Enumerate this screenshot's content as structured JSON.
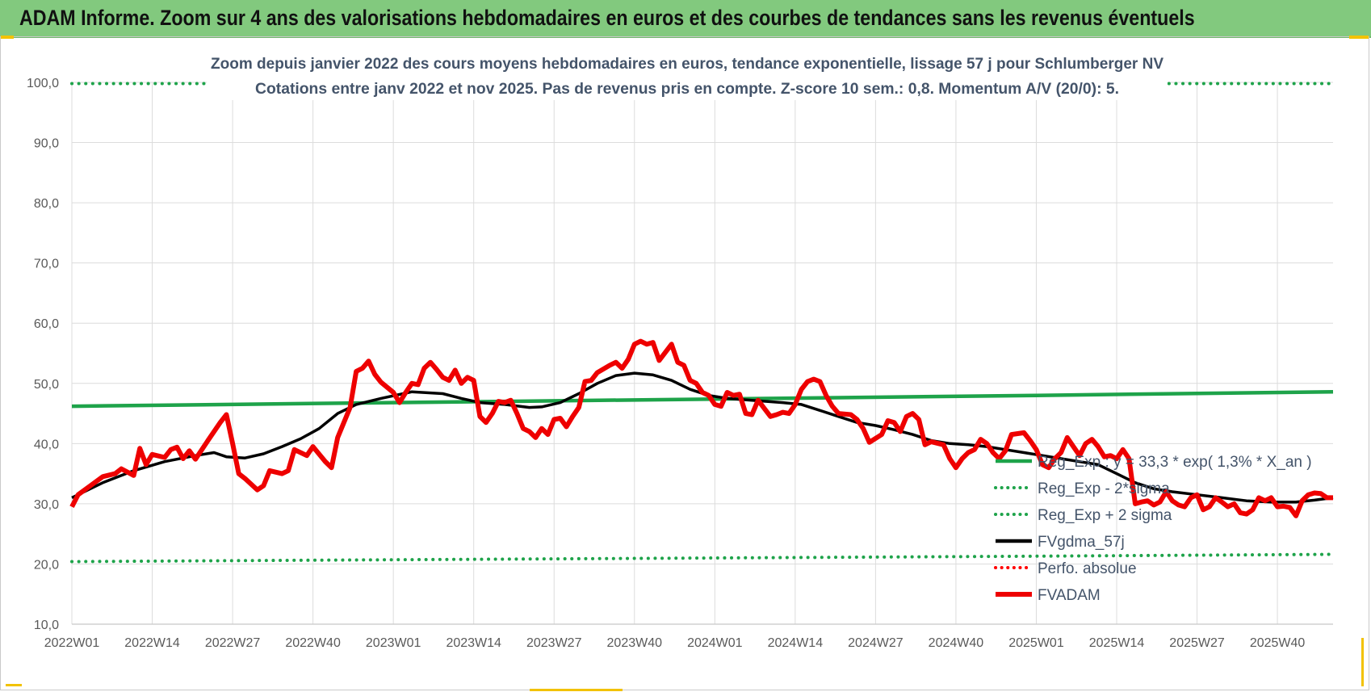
{
  "banner": {
    "title": "ADAM Informe. Zoom sur 4 ans des valorisations hebdomadaires en euros et des courbes de tendances sans les revenus éventuels"
  },
  "chart_data": {
    "type": "line",
    "title": "Zoom depuis janvier 2022 des cours moyens hebdomadaires en euros, tendance exponentielle, lissage 57 j pour Schlumberger NV",
    "subtitle": "Cotations entre janv 2022 et nov 2025. Pas de revenus pris en compte. Z-score 10 sem.: 0,8. Momentum A/V (20/0): 5.",
    "xlabel": "",
    "ylabel": "",
    "ylim": [
      10,
      100
    ],
    "yticks": [
      "10,0",
      "20,0",
      "30,0",
      "40,0",
      "50,0",
      "60,0",
      "70,0",
      "80,0",
      "90,0",
      "100,0"
    ],
    "xticks": [
      {
        "index": 0,
        "label": "2022W01"
      },
      {
        "index": 13,
        "label": "2022W14"
      },
      {
        "index": 26,
        "label": "2022W27"
      },
      {
        "index": 39,
        "label": "2022W40"
      },
      {
        "index": 52,
        "label": "2023W01"
      },
      {
        "index": 65,
        "label": "2023W14"
      },
      {
        "index": 78,
        "label": "2023W27"
      },
      {
        "index": 91,
        "label": "2023W40"
      },
      {
        "index": 104,
        "label": "2024W01"
      },
      {
        "index": 117,
        "label": "2024W14"
      },
      {
        "index": 130,
        "label": "2024W27"
      },
      {
        "index": 143,
        "label": "2024W40"
      },
      {
        "index": 156,
        "label": "2025W01"
      },
      {
        "index": 169,
        "label": "2025W14"
      },
      {
        "index": 182,
        "label": "2025W27"
      },
      {
        "index": 195,
        "label": "2025W40"
      }
    ],
    "x_count": 205,
    "series": [
      {
        "name": "Reg_Exp : y = 33,3 * exp( 1,3% * X_an )",
        "style": "solid",
        "color": "#1ea34a",
        "points": [
          [
            0,
            46.2
          ],
          [
            52,
            46.8
          ],
          [
            104,
            47.4
          ],
          [
            156,
            48.0
          ],
          [
            204,
            48.6
          ]
        ]
      },
      {
        "name": "Reg_Exp - 2*sigma",
        "style": "dotted",
        "color": "#1ea34a",
        "points": [
          [
            0,
            20.4
          ],
          [
            52,
            20.7
          ],
          [
            104,
            21.0
          ],
          [
            156,
            21.3
          ],
          [
            204,
            21.6
          ]
        ]
      },
      {
        "name": "Reg_Exp + 2 sigma",
        "style": "dotted",
        "color": "#1ea34a",
        "points": [
          [
            0,
            99.8
          ],
          [
            204,
            99.8
          ]
        ]
      },
      {
        "name": "FVgdma_57j",
        "style": "solid",
        "color": "#000000",
        "points": [
          [
            0,
            31
          ],
          [
            5,
            33.5
          ],
          [
            10,
            35.5
          ],
          [
            15,
            37
          ],
          [
            20,
            38
          ],
          [
            23,
            38.5
          ],
          [
            25,
            37.8
          ],
          [
            28,
            37.6
          ],
          [
            31,
            38.3
          ],
          [
            34,
            39.5
          ],
          [
            37,
            40.8
          ],
          [
            40,
            42.5
          ],
          [
            43,
            45
          ],
          [
            46,
            46.5
          ],
          [
            50,
            47.5
          ],
          [
            55,
            48.6
          ],
          [
            60,
            48.3
          ],
          [
            63,
            47.5
          ],
          [
            66,
            46.8
          ],
          [
            70,
            46.5
          ],
          [
            74,
            46
          ],
          [
            76,
            46.1
          ],
          [
            79,
            46.8
          ],
          [
            82,
            48.3
          ],
          [
            85,
            50
          ],
          [
            88,
            51.3
          ],
          [
            91,
            51.7
          ],
          [
            94,
            51.4
          ],
          [
            97,
            50.5
          ],
          [
            100,
            49
          ],
          [
            103,
            48
          ],
          [
            106,
            47.5
          ],
          [
            110,
            47.2
          ],
          [
            115,
            46.8
          ],
          [
            118,
            46.5
          ],
          [
            121,
            45.5
          ],
          [
            124,
            44.5
          ],
          [
            127,
            43.5
          ],
          [
            130,
            43
          ],
          [
            133,
            42.3
          ],
          [
            136,
            41.5
          ],
          [
            139,
            40.5
          ],
          [
            142,
            40
          ],
          [
            145,
            39.8
          ],
          [
            148,
            39.5
          ],
          [
            151,
            39
          ],
          [
            154,
            38.5
          ],
          [
            157,
            38
          ],
          [
            160,
            37.5
          ],
          [
            163,
            37
          ],
          [
            166,
            36.5
          ],
          [
            169,
            35
          ],
          [
            172,
            33.5
          ],
          [
            175,
            32.5
          ],
          [
            178,
            32
          ],
          [
            182,
            31.5
          ],
          [
            186,
            31
          ],
          [
            190,
            30.5
          ],
          [
            194,
            30.3
          ],
          [
            198,
            30.3
          ],
          [
            201,
            30.6
          ],
          [
            204,
            31
          ]
        ]
      },
      {
        "name": "Perfo. absolue",
        "style": "dotted",
        "color": "#ff0000",
        "points": []
      },
      {
        "name": "FVADAM",
        "style": "solid",
        "color": "#ee0000",
        "points": [
          [
            0,
            29.5
          ],
          [
            1,
            31.5
          ],
          [
            3,
            33
          ],
          [
            5,
            34.5
          ],
          [
            7,
            35
          ],
          [
            8,
            35.8
          ],
          [
            10,
            34.7
          ],
          [
            11,
            39.2
          ],
          [
            12,
            36.5
          ],
          [
            13,
            38.2
          ],
          [
            15,
            37.7
          ],
          [
            16,
            39
          ],
          [
            17,
            39.4
          ],
          [
            18,
            37.5
          ],
          [
            19,
            38.8
          ],
          [
            20,
            37.4
          ],
          [
            22,
            40.5
          ],
          [
            24,
            43.5
          ],
          [
            25,
            44.8
          ],
          [
            26,
            40
          ],
          [
            27,
            35
          ],
          [
            28,
            34.2
          ],
          [
            30,
            32.3
          ],
          [
            31,
            33
          ],
          [
            32,
            35.5
          ],
          [
            34,
            35
          ],
          [
            35,
            35.5
          ],
          [
            36,
            39
          ],
          [
            38,
            38
          ],
          [
            39,
            39.5
          ],
          [
            41,
            37
          ],
          [
            42,
            36
          ],
          [
            43,
            41
          ],
          [
            45,
            46
          ],
          [
            46,
            52
          ],
          [
            47,
            52.5
          ],
          [
            48,
            53.7
          ],
          [
            49,
            51.5
          ],
          [
            50,
            50.2
          ],
          [
            52,
            48.5
          ],
          [
            53,
            46.8
          ],
          [
            54,
            48.5
          ],
          [
            55,
            50
          ],
          [
            56,
            49.8
          ],
          [
            57,
            52.5
          ],
          [
            58,
            53.5
          ],
          [
            59,
            52.3
          ],
          [
            60,
            51
          ],
          [
            61,
            50.5
          ],
          [
            62,
            52.2
          ],
          [
            63,
            50
          ],
          [
            64,
            51
          ],
          [
            65,
            50.5
          ],
          [
            66,
            44.5
          ],
          [
            67,
            43.5
          ],
          [
            68,
            45
          ],
          [
            69,
            47
          ],
          [
            70,
            46.8
          ],
          [
            71,
            47.2
          ],
          [
            72,
            45
          ],
          [
            73,
            42.5
          ],
          [
            74,
            42
          ],
          [
            75,
            41
          ],
          [
            76,
            42.5
          ],
          [
            77,
            41.5
          ],
          [
            78,
            44
          ],
          [
            79,
            44.2
          ],
          [
            80,
            42.8
          ],
          [
            81,
            44.5
          ],
          [
            82,
            46
          ],
          [
            83,
            50.3
          ],
          [
            84,
            50.5
          ],
          [
            85,
            51.8
          ],
          [
            87,
            53
          ],
          [
            88,
            53.5
          ],
          [
            89,
            52.5
          ],
          [
            90,
            54
          ],
          [
            91,
            56.5
          ],
          [
            92,
            57
          ],
          [
            93,
            56.5
          ],
          [
            94,
            56.8
          ],
          [
            95,
            53.8
          ],
          [
            97,
            56.5
          ],
          [
            98,
            53.5
          ],
          [
            99,
            53
          ],
          [
            100,
            50.5
          ],
          [
            101,
            50
          ],
          [
            102,
            48.5
          ],
          [
            103,
            48
          ],
          [
            104,
            46.5
          ],
          [
            105,
            46.2
          ],
          [
            106,
            48.5
          ],
          [
            107,
            48
          ],
          [
            108,
            48.2
          ],
          [
            109,
            45
          ],
          [
            110,
            44.8
          ],
          [
            111,
            47.2
          ],
          [
            113,
            44.5
          ],
          [
            114,
            44.8
          ],
          [
            115,
            45.2
          ],
          [
            116,
            45
          ],
          [
            117,
            46.5
          ],
          [
            118,
            49
          ],
          [
            119,
            50.3
          ],
          [
            120,
            50.7
          ],
          [
            121,
            50.3
          ],
          [
            122,
            48
          ],
          [
            123,
            46.2
          ],
          [
            124,
            45
          ],
          [
            126,
            44.8
          ],
          [
            127,
            44
          ],
          [
            128,
            42.5
          ],
          [
            129,
            40.2
          ],
          [
            131,
            41.5
          ],
          [
            132,
            43.8
          ],
          [
            133,
            43.5
          ],
          [
            134,
            42
          ],
          [
            135,
            44.5
          ],
          [
            136,
            45
          ],
          [
            137,
            44
          ],
          [
            138,
            39.8
          ],
          [
            139,
            40.3
          ],
          [
            141,
            39.8
          ],
          [
            142,
            37.5
          ],
          [
            143,
            36
          ],
          [
            144,
            37.5
          ],
          [
            145,
            38.5
          ],
          [
            146,
            39
          ],
          [
            147,
            40.7
          ],
          [
            148,
            40
          ],
          [
            149,
            38.5
          ],
          [
            150,
            37.5
          ],
          [
            151,
            38.8
          ],
          [
            152,
            41.5
          ],
          [
            154,
            41.8
          ],
          [
            155,
            40.5
          ],
          [
            156,
            39
          ],
          [
            157,
            36.5
          ],
          [
            158,
            36
          ],
          [
            159,
            37.5
          ],
          [
            160,
            38.5
          ],
          [
            161,
            41
          ],
          [
            162,
            39.5
          ],
          [
            163,
            38
          ],
          [
            164,
            40
          ],
          [
            165,
            40.7
          ],
          [
            166,
            39.5
          ],
          [
            167,
            37.8
          ],
          [
            168,
            38
          ],
          [
            169,
            37.5
          ],
          [
            170,
            39
          ],
          [
            171,
            37.5
          ],
          [
            172,
            30
          ],
          [
            173,
            30.3
          ],
          [
            174,
            30.5
          ],
          [
            175,
            29.8
          ],
          [
            176,
            30.3
          ],
          [
            177,
            32
          ],
          [
            178,
            30.5
          ],
          [
            179,
            29.8
          ],
          [
            180,
            29.5
          ],
          [
            181,
            31
          ],
          [
            182,
            31.5
          ],
          [
            183,
            29
          ],
          [
            184,
            29.5
          ],
          [
            185,
            31
          ],
          [
            186,
            30.3
          ],
          [
            187,
            29.5
          ],
          [
            188,
            30
          ],
          [
            189,
            28.5
          ],
          [
            190,
            28.3
          ],
          [
            191,
            29
          ],
          [
            192,
            31
          ],
          [
            193,
            30.5
          ],
          [
            194,
            31
          ],
          [
            195,
            29.5
          ],
          [
            196,
            29.6
          ],
          [
            197,
            29.4
          ],
          [
            198,
            28
          ],
          [
            199,
            30.5
          ],
          [
            200,
            31.5
          ],
          [
            201,
            31.8
          ],
          [
            202,
            31.7
          ],
          [
            203,
            31
          ],
          [
            204,
            31
          ]
        ]
      }
    ],
    "legend_position": "right"
  }
}
